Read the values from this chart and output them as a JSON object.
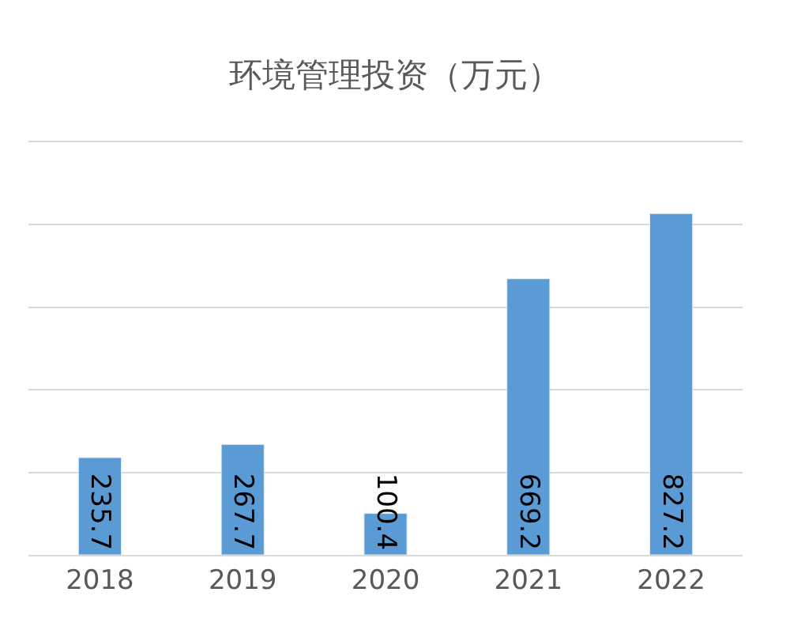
{
  "chart_data": {
    "type": "bar",
    "title": "环境管理投资（万元）",
    "categories": [
      "2018",
      "2019",
      "2020",
      "2021",
      "2022"
    ],
    "values": [
      235.7,
      267.7,
      100.4,
      669.2,
      827.2
    ],
    "color": "#5b9bd5",
    "ylim": [
      0,
      1000
    ],
    "yticks": [
      {
        "value": 0,
        "label": null
      },
      {
        "value": 200,
        "label": null
      },
      {
        "value": 400,
        "label": null
      },
      {
        "value": 600,
        "label": null
      },
      {
        "value": 800,
        "label": null
      },
      {
        "value": 1000,
        "label": null
      }
    ],
    "grid": "y",
    "tick_labels": "x",
    "data_labels": true
  }
}
